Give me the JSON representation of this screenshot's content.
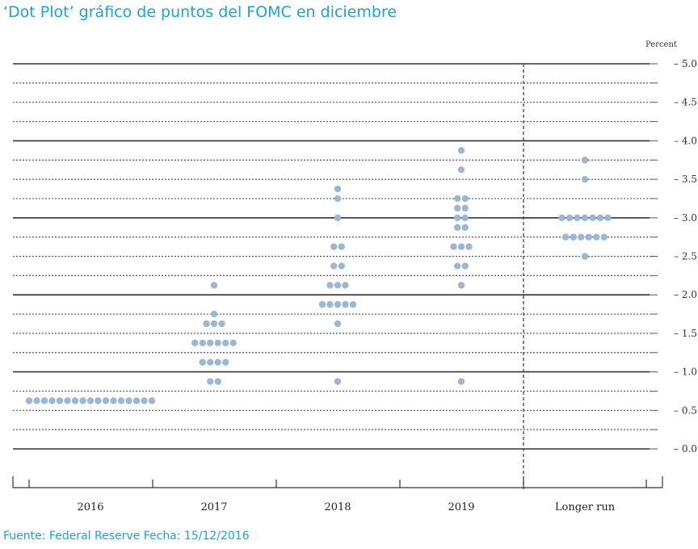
{
  "header": {
    "title": "‘Dot Plot’  gráfico de puntos del FOMC en diciembre"
  },
  "footer": {
    "source": "Fuente: Federal Reserve Fecha: 15/12/2016"
  },
  "colors": {
    "dot": "#9bb7d4",
    "title": "#1aa3d6"
  },
  "chart_data": {
    "type": "scatter",
    "title": "",
    "xlabel": "",
    "ylabel": "Percent",
    "ylim": [
      0,
      5
    ],
    "yticks": [
      "0.0",
      "0.5",
      "1.0",
      "1.5",
      "2.0",
      "2.5",
      "3.0",
      "3.5",
      "4.0",
      "4.5",
      "5.0"
    ],
    "categories": [
      "2016",
      "2017",
      "2018",
      "2019",
      "Longer run"
    ],
    "dots": [
      {
        "category": "2016",
        "values": [
          [
            0.625,
            17
          ]
        ]
      },
      {
        "category": "2017",
        "values": [
          [
            0.875,
            2
          ],
          [
            1.125,
            4
          ],
          [
            1.375,
            6
          ],
          [
            1.625,
            3
          ],
          [
            1.75,
            1
          ],
          [
            2.125,
            1
          ]
        ]
      },
      {
        "category": "2018",
        "values": [
          [
            0.875,
            1
          ],
          [
            1.625,
            1
          ],
          [
            1.875,
            5
          ],
          [
            2.125,
            3
          ],
          [
            2.375,
            2
          ],
          [
            2.625,
            2
          ],
          [
            3.0,
            1
          ],
          [
            3.25,
            1
          ],
          [
            3.375,
            1
          ]
        ]
      },
      {
        "category": "2019",
        "values": [
          [
            0.875,
            1
          ],
          [
            2.125,
            1
          ],
          [
            2.375,
            2
          ],
          [
            2.625,
            3
          ],
          [
            2.875,
            2
          ],
          [
            3.0,
            2
          ],
          [
            3.125,
            2
          ],
          [
            3.25,
            2
          ],
          [
            3.625,
            1
          ],
          [
            3.875,
            1
          ]
        ]
      },
      {
        "category": "Longer run",
        "values": [
          [
            2.5,
            1
          ],
          [
            2.75,
            6
          ],
          [
            3.0,
            7
          ],
          [
            3.5,
            1
          ],
          [
            3.75,
            1
          ]
        ]
      }
    ],
    "grid": true,
    "separator_before": "Longer run"
  }
}
